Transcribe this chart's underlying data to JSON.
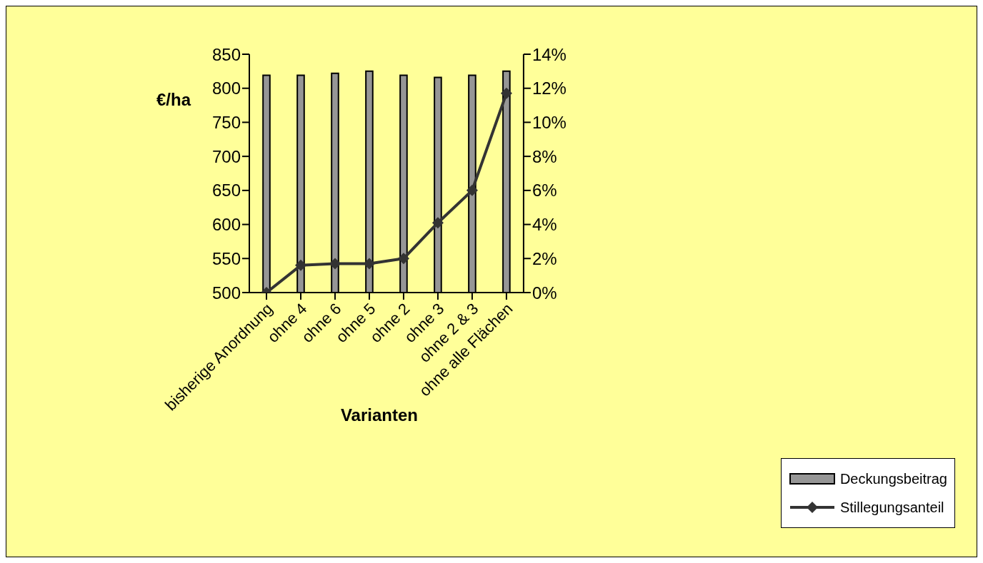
{
  "chart_data": {
    "type": "bar",
    "xlabel": "Varianten",
    "ylabel": "€/ha",
    "categories": [
      "bisherige Anordnung",
      "ohne 4",
      "ohne 6",
      "ohne 5",
      "ohne 2",
      "ohne 3",
      "ohne 2 & 3",
      "ohne alle Flächen"
    ],
    "series": [
      {
        "name": "Deckungsbeitrag",
        "color": "#969696",
        "values": [
          819,
          819,
          822,
          825,
          819,
          816,
          819,
          825
        ]
      },
      {
        "name": "Stillegungsanteil",
        "type": "line",
        "axis": "y2",
        "color": "#333333",
        "values": [
          0,
          1.6,
          1.7,
          1.7,
          2.0,
          4.1,
          6.0,
          11.7
        ]
      }
    ],
    "ylim": [
      500,
      850
    ],
    "yticks": [
      500,
      550,
      600,
      650,
      700,
      750,
      800,
      850
    ],
    "y2lim": [
      0,
      14
    ],
    "y2ticks": [
      {
        "value": 0,
        "label": "0%"
      },
      {
        "value": 2,
        "label": "2%"
      },
      {
        "value": 4,
        "label": "4%"
      },
      {
        "value": 6,
        "label": "6%"
      },
      {
        "value": 8,
        "label": "8%"
      },
      {
        "value": 10,
        "label": "10%"
      },
      {
        "value": 12,
        "label": "12%"
      },
      {
        "value": 14,
        "label": "14%"
      }
    ],
    "grid": false,
    "legend": "bottom right",
    "marker": "diamond",
    "line_style": "solid"
  }
}
